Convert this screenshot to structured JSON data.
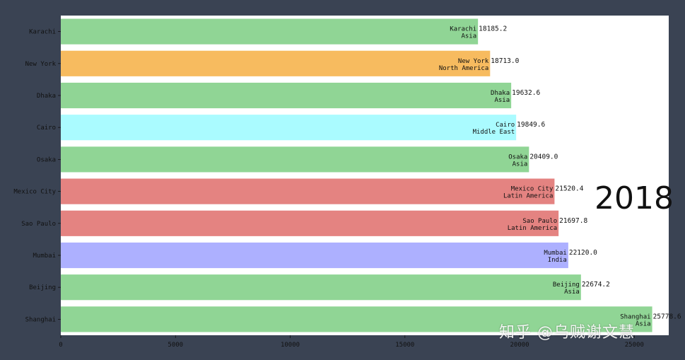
{
  "chart_data": {
    "type": "bar",
    "orientation": "horizontal",
    "year": "2018",
    "categories": [
      "Karachi",
      "New York",
      "Dhaka",
      "Cairo",
      "Osaka",
      "Mexico City",
      "Sao Paulo",
      "Mumbai",
      "Beijing",
      "Shanghai"
    ],
    "groups": [
      "Asia",
      "North America",
      "Asia",
      "Middle East",
      "Asia",
      "Latin America",
      "Latin America",
      "India",
      "Asia",
      "Asia"
    ],
    "values": [
      18185.2,
      18713.0,
      19632.6,
      19849.6,
      20409.0,
      21520.4,
      21697.8,
      22120.0,
      22674.2,
      25778.6
    ],
    "value_labels": [
      "18185.2",
      "18713.0",
      "19632.6",
      "19849.6",
      "20409.0",
      "21520.4",
      "21697.8",
      "22120.0",
      "22674.2",
      "25778.6"
    ],
    "group_colors": {
      "Asia": "#90d595",
      "North America": "#f7bb5f",
      "Middle East": "#aafbff",
      "Latin America": "#e48381",
      "India": "#adb0ff"
    },
    "x_ticks": [
      "0",
      "5000",
      "10000",
      "15000",
      "20000",
      "25000"
    ],
    "xlim": [
      0,
      26500
    ],
    "grid": false,
    "legend": "none"
  },
  "watermark": "知乎 @乌贼谢文慧"
}
